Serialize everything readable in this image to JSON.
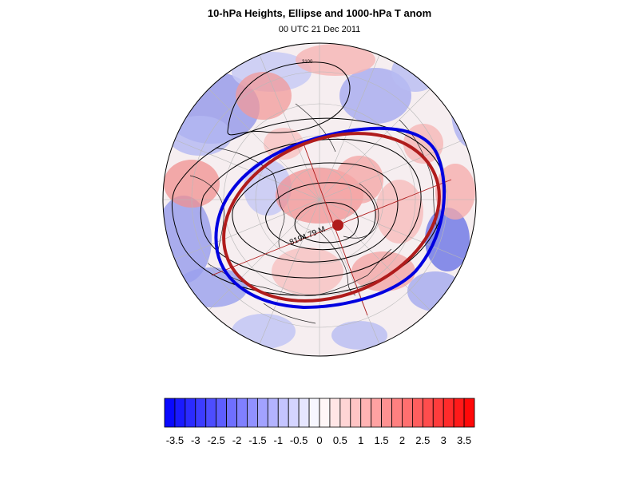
{
  "title": "10-hPa Heights, Ellipse and 1000-hPa T anom",
  "subtitle": "00 UTC 21 Dec 2011",
  "height_label": "8194.79 M",
  "contour_label": "3100",
  "colors": {
    "vortex_edge_contour": "#0000e0",
    "ellipse": "#b01c1c",
    "centroid": "#b01c1c",
    "contours": "#000000"
  },
  "colorbar": {
    "levels": [
      -3.75,
      -3.5,
      -3.25,
      -3,
      -2.75,
      -2.5,
      -2.25,
      -2,
      -1.75,
      -1.5,
      -1.25,
      -1,
      -0.75,
      -0.5,
      -0.25,
      0,
      0.25,
      0.5,
      0.75,
      1,
      1.25,
      1.5,
      1.75,
      2,
      2.25,
      2.5,
      2.75,
      3,
      3.25,
      3.5,
      3.75
    ],
    "tick_values": [
      -3.5,
      -3,
      -2.5,
      -2,
      -1.5,
      -1,
      -0.5,
      0,
      0.5,
      1,
      1.5,
      2,
      2.5,
      3,
      3.5
    ],
    "tick_labels": [
      "-3.5",
      "-3",
      "-2.5",
      "-2",
      "-1.5",
      "-1",
      "-0.5",
      "0",
      "0.5",
      "1",
      "1.5",
      "2",
      "2.5",
      "3",
      "3.5"
    ],
    "low_color": "#0000ff",
    "mid_color": "#ffffff",
    "high_color": "#ff0000"
  }
}
